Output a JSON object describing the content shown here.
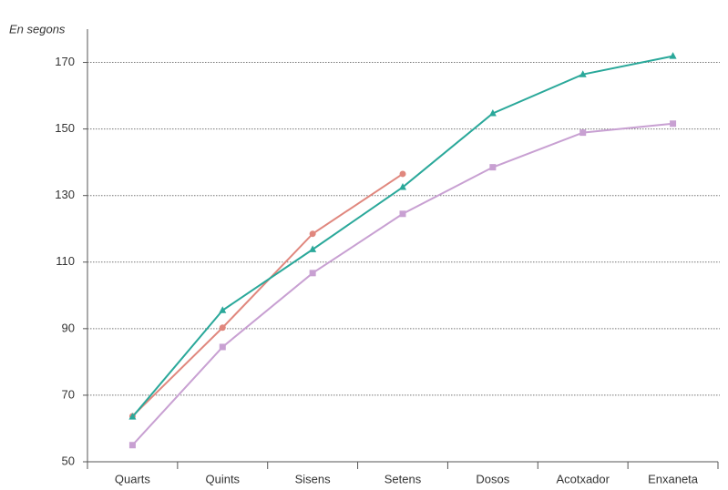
{
  "chart_data": {
    "type": "line",
    "axis_label": "En segons",
    "categories": [
      "Quarts",
      "Quints",
      "Sisens",
      "Setens",
      "Dosos",
      "Acotxador",
      "Enxaneta"
    ],
    "series": [
      {
        "color": "#e0877e",
        "marker": "circle",
        "values": [
          63.7,
          90.3,
          118.5,
          136.5,
          null,
          null,
          null
        ]
      },
      {
        "color": "#2aa89a",
        "marker": "triangle",
        "values": [
          63.5,
          95.5,
          113.8,
          132.5,
          154.7,
          166.4,
          171.9
        ]
      },
      {
        "color": "#c8a0d2",
        "marker": "square",
        "values": [
          55,
          84.5,
          106.7,
          124.5,
          138.5,
          148.9,
          151.6
        ]
      }
    ],
    "ylim": [
      50,
      180
    ],
    "yticks": [
      50,
      70,
      90,
      110,
      130,
      150,
      170
    ],
    "grid": true
  }
}
